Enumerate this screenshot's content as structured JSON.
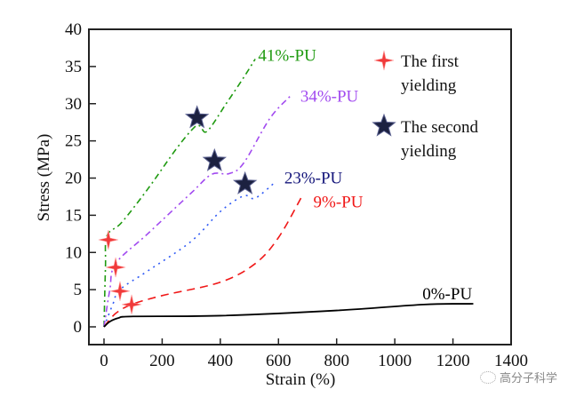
{
  "chart_data": {
    "type": "line",
    "title": "",
    "xlabel": "Strain (%)",
    "ylabel": "Stress (MPa)",
    "xlim": [
      -50,
      1400
    ],
    "ylim": [
      -2.4,
      40
    ],
    "xticks": [
      0,
      200,
      400,
      600,
      800,
      1000,
      1200,
      1400
    ],
    "yticks": [
      0,
      5,
      10,
      15,
      20,
      25,
      30,
      35,
      40
    ],
    "xtick_labels": [
      "0",
      "200",
      "400",
      "600",
      "800",
      "1000",
      "1200",
      "1400"
    ],
    "ytick_labels": [
      "0",
      "5",
      "10",
      "15",
      "20",
      "25",
      "30",
      "35",
      "40"
    ],
    "grid": false,
    "series": [
      {
        "name": "41%-PU",
        "color": "#1f9a10",
        "style": "dash-dot",
        "x": [
          0,
          5,
          10,
          60,
          150,
          250,
          310,
          330,
          355,
          420,
          480,
          520
        ],
        "y": [
          0,
          8,
          12.2,
          14,
          18.5,
          24,
          26.8,
          27.0,
          26.3,
          30,
          33.5,
          36
        ]
      },
      {
        "name": "34%-PU",
        "color": "#a24bf0",
        "style": "dash-dot",
        "x": [
          0,
          20,
          40,
          150,
          300,
          370,
          430,
          480,
          570,
          640
        ],
        "y": [
          0,
          5,
          8.5,
          12.5,
          18,
          20.5,
          20.6,
          22,
          28,
          31
        ]
      },
      {
        "name": "23%-PU",
        "color": "#2f5af5",
        "style": "dotted",
        "x": [
          0,
          30,
          55,
          150,
          300,
          400,
          480,
          520,
          590
        ],
        "y": [
          0,
          3,
          5,
          7.5,
          11.5,
          15.5,
          17.6,
          17.3,
          19.5
        ]
      },
      {
        "name": "9%-PU",
        "color": "#f01818",
        "style": "dashed",
        "x": [
          0,
          40,
          95,
          200,
          400,
          520,
          600,
          680
        ],
        "y": [
          0,
          1.8,
          3,
          4.2,
          6,
          8.5,
          12,
          17.5
        ]
      },
      {
        "name": "0%-PU",
        "color": "#000000",
        "style": "solid",
        "x": [
          0,
          20,
          50,
          100,
          400,
          800,
          1100,
          1270
        ],
        "y": [
          0,
          0.7,
          1.2,
          1.4,
          1.5,
          2.2,
          3.0,
          3.1
        ]
      }
    ],
    "series_label_colors": {
      "41%-PU": "#1f9a10",
      "34%-PU": "#a24bf0",
      "23%-PU": "#13147a",
      "9%-PU": "#f01818",
      "0%-PU": "#000000"
    },
    "series_label_positions": [
      {
        "name": "41%-PU",
        "x": 530,
        "y": 36.5
      },
      {
        "name": "34%-PU",
        "x": 675,
        "y": 31
      },
      {
        "name": "23%-PU",
        "x": 620,
        "y": 20
      },
      {
        "name": "9%-PU",
        "x": 720,
        "y": 16.8
      },
      {
        "name": "0%-PU",
        "x": 1095,
        "y": 4.4
      }
    ],
    "markers": {
      "first_yielding": {
        "label": "The first yielding",
        "color": "#f03a3a",
        "points": [
          [
            15,
            11.7
          ],
          [
            40,
            8.0
          ],
          [
            55,
            4.8
          ],
          [
            95,
            3.0
          ]
        ]
      },
      "second_yielding": {
        "label": "The second yielding",
        "color": "#1c2140",
        "points": [
          [
            320,
            28.1
          ],
          [
            380,
            22.3
          ],
          [
            485,
            19.2
          ]
        ]
      }
    },
    "legend": {
      "placement": "top-right",
      "entries": [
        {
          "marker": "red-cross",
          "line1": "The first",
          "line2": "yielding"
        },
        {
          "marker": "navy-star",
          "line1": "The second",
          "line2": "yielding"
        }
      ]
    }
  },
  "watermark": {
    "text": "高分子科学"
  }
}
